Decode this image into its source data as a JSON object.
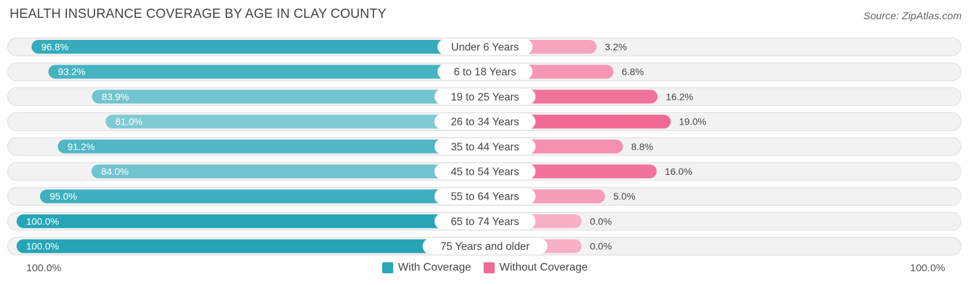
{
  "title": "HEALTH INSURANCE COVERAGE BY AGE IN CLAY COUNTY",
  "source": "Source: ZipAtlas.com",
  "axis": {
    "left_label": "100.0%",
    "right_label": "100.0%"
  },
  "legend": [
    {
      "label": "With Coverage",
      "color": "#2aa8b8"
    },
    {
      "label": "Without Coverage",
      "color": "#f06b96"
    }
  ],
  "chart_data": {
    "type": "bar",
    "orientation": "horizontal-diverging",
    "title": "HEALTH INSURANCE COVERAGE BY AGE IN CLAY COUNTY",
    "categories": [
      "Under 6 Years",
      "6 to 18 Years",
      "19 to 25 Years",
      "26 to 34 Years",
      "35 to 44 Years",
      "45 to 54 Years",
      "55 to 64 Years",
      "65 to 74 Years",
      "75 Years and older"
    ],
    "series": [
      {
        "name": "With Coverage",
        "values": [
          96.8,
          93.2,
          83.9,
          81.0,
          91.2,
          84.0,
          95.0,
          100.0,
          100.0
        ],
        "labels": [
          "96.8%",
          "93.2%",
          "83.9%",
          "81.0%",
          "91.2%",
          "84.0%",
          "95.0%",
          "100.0%",
          "100.0%"
        ]
      },
      {
        "name": "Without Coverage",
        "values": [
          3.2,
          6.8,
          16.2,
          19.0,
          8.8,
          16.0,
          5.0,
          0.0,
          0.0
        ],
        "labels": [
          "3.2%",
          "6.8%",
          "16.2%",
          "19.0%",
          "8.8%",
          "16.0%",
          "5.0%",
          "0.0%",
          "0.0%"
        ]
      }
    ],
    "xlim": [
      0,
      100
    ],
    "legend_position": "bottom-center"
  }
}
